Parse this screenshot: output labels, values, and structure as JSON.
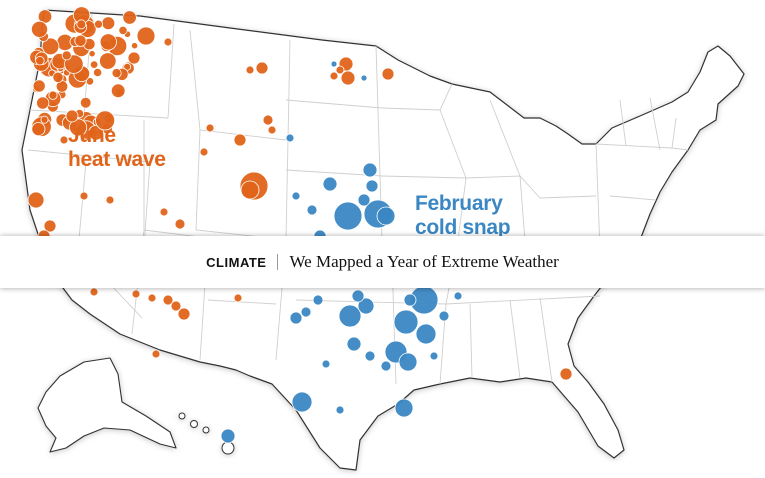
{
  "colors": {
    "background": "#ffffff",
    "land": "#ffffff",
    "state_border": "#cfcfcf",
    "national_border": "#333333",
    "heat": "#e0641a",
    "cold": "#3a87c3"
  },
  "icons": [
    "map-of-united-states"
  ],
  "map": {
    "labels": {
      "june": [
        "June",
        "heat wave"
      ],
      "february": [
        "February",
        "cold snap"
      ]
    }
  },
  "banner": {
    "section": "CLIMATE",
    "headline": "We Mapped a Year of Extreme Weather"
  }
}
